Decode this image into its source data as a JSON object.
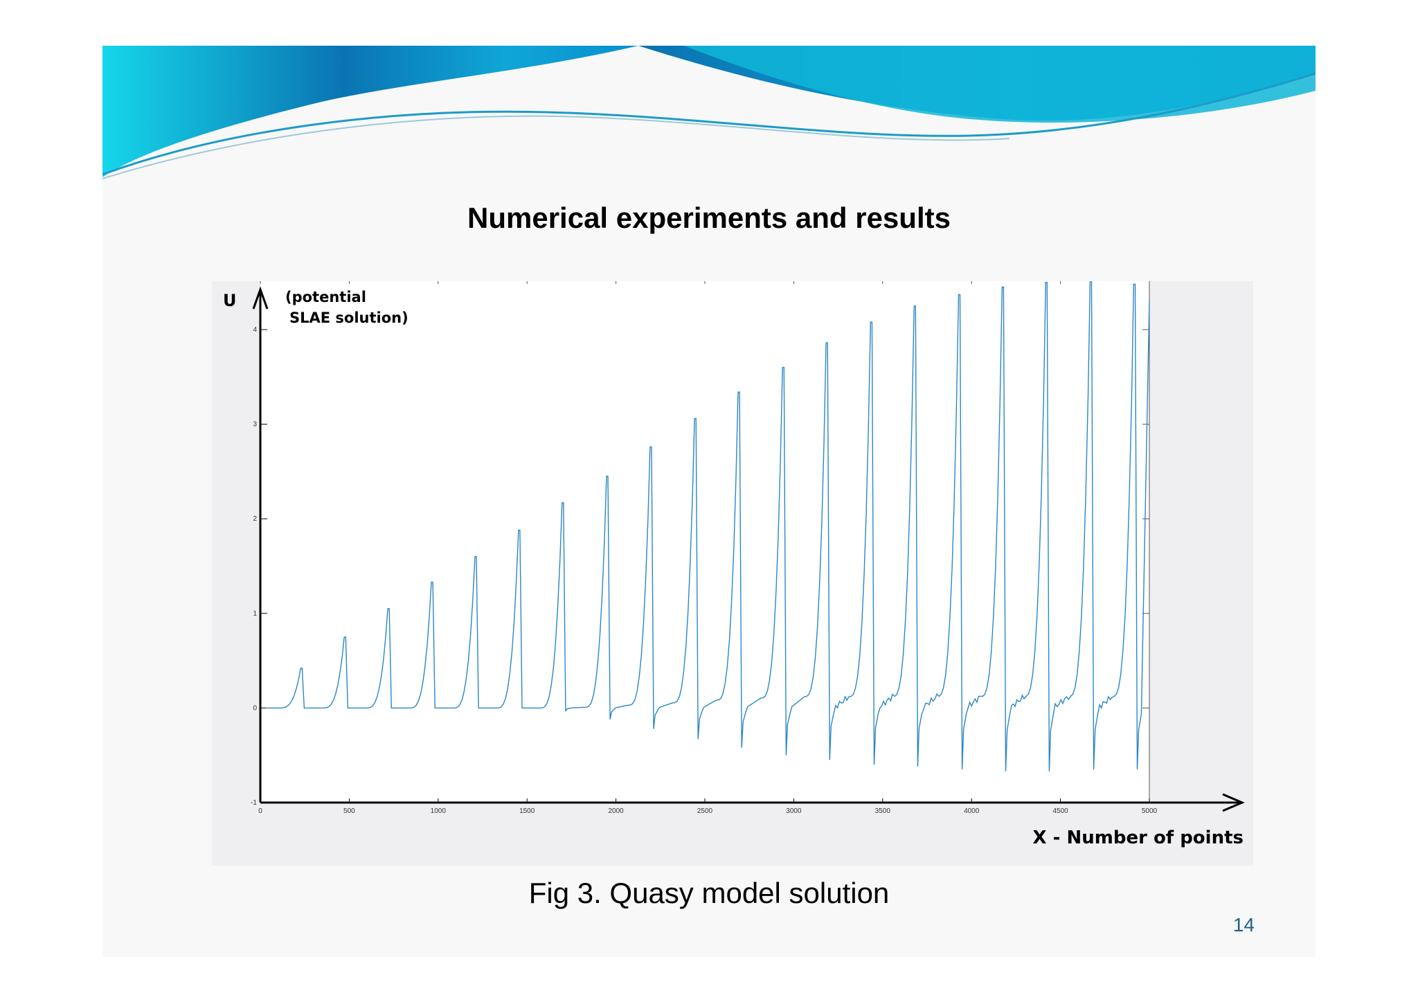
{
  "slide": {
    "title": "Numerical experiments and results",
    "caption": "Fig 3. Quasy model solution",
    "page_number": "14"
  },
  "colors": {
    "series": "#2a86c8",
    "banner_dark": "#0a72b0",
    "banner_light": "#19d0e8",
    "page_number": "#1e5e8c"
  },
  "chart_data": {
    "type": "line",
    "title": "",
    "y_axis_label": "U",
    "y_axis_note_lines": [
      "(potential",
      "SLAE solution)"
    ],
    "x_axis_label": "X - Number of points",
    "xlim": [
      0,
      5000
    ],
    "ylim": [
      -1,
      4.9
    ],
    "x_ticks": [
      0,
      500,
      1000,
      1500,
      2000,
      2500,
      3000,
      3500,
      4000,
      4500,
      5000
    ],
    "y_ticks": [
      -1,
      0,
      1,
      2,
      3,
      4
    ],
    "grid": false,
    "legend": "none",
    "series": [
      {
        "values_description_note": "",
        "peaks": [
          {
            "x": 235,
            "y": 0.42,
            "min": 0.0
          },
          {
            "x": 480,
            "y": 0.75,
            "min": 0.0
          },
          {
            "x": 725,
            "y": 1.05,
            "min": 0.0
          },
          {
            "x": 970,
            "y": 1.33,
            "min": 0.0
          },
          {
            "x": 1215,
            "y": 1.6,
            "min": 0.0
          },
          {
            "x": 1460,
            "y": 1.88,
            "min": 0.0
          },
          {
            "x": 1705,
            "y": 2.17,
            "min": -0.03
          },
          {
            "x": 1955,
            "y": 2.45,
            "min": -0.12
          },
          {
            "x": 2200,
            "y": 2.76,
            "min": -0.22
          },
          {
            "x": 2450,
            "y": 3.06,
            "min": -0.33
          },
          {
            "x": 2695,
            "y": 3.34,
            "min": -0.42
          },
          {
            "x": 2945,
            "y": 3.6,
            "min": -0.5
          },
          {
            "x": 3190,
            "y": 3.86,
            "min": -0.55
          },
          {
            "x": 3440,
            "y": 4.08,
            "min": -0.6
          },
          {
            "x": 3685,
            "y": 4.25,
            "min": -0.62
          },
          {
            "x": 3935,
            "y": 4.37,
            "min": -0.65
          },
          {
            "x": 4180,
            "y": 4.45,
            "min": -0.67
          },
          {
            "x": 4425,
            "y": 4.5,
            "min": -0.67
          },
          {
            "x": 4675,
            "y": 4.52,
            "min": -0.65
          },
          {
            "x": 4920,
            "y": 4.48,
            "min": -0.65
          }
        ]
      }
    ]
  }
}
